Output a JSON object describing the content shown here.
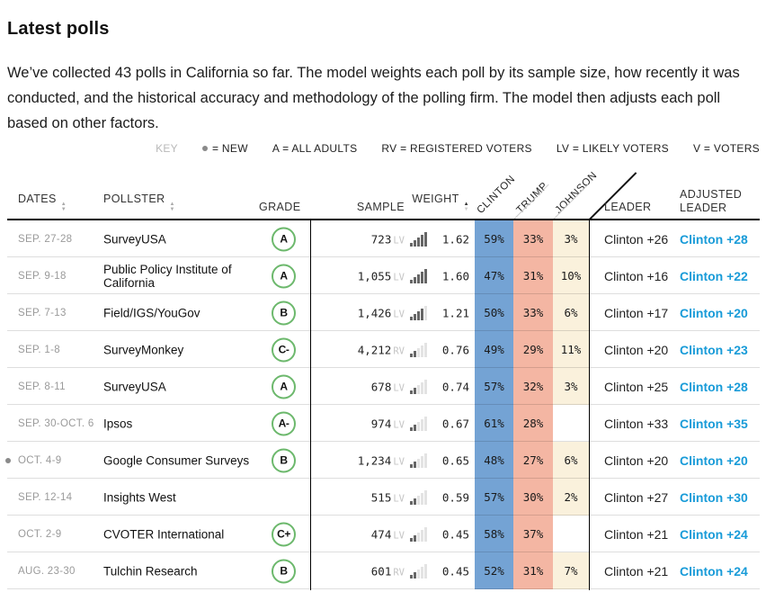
{
  "page": {
    "title": "Latest polls",
    "intro": "We’ve collected 43 polls in California so far. The model weights each poll by its sample size, how recently it was conducted, and the historical accuracy and methodology of the polling firm. The model then adjusts each poll based on other factors."
  },
  "key": {
    "label": "KEY",
    "items": [
      {
        "icon": "dot",
        "text": "= NEW"
      },
      {
        "text": "A = ALL ADULTS"
      },
      {
        "text": "RV = REGISTERED VOTERS"
      },
      {
        "text": "LV = LIKELY VOTERS"
      },
      {
        "text": "V = VOTERS"
      }
    ]
  },
  "columns": {
    "dates": "DATES",
    "pollster": "POLLSTER",
    "grade": "GRADE",
    "sample": "SAMPLE",
    "weight": "WEIGHT",
    "candidates": [
      "CLINTON",
      "TRUMP",
      "JOHNSON"
    ],
    "leader": "LEADER",
    "adjusted_leader_line1": "ADJUSTED",
    "adjusted_leader_line2": "LEADER"
  },
  "colors": {
    "clinton_column": "#74a3d4",
    "trump_column": "#f4b6a3",
    "johnson_column": "#faf1dc",
    "adjusted_blue": "#189bd8",
    "grade_green": "#6cb86c"
  },
  "rows": [
    {
      "is_new": false,
      "dates": "SEP. 27-28",
      "pollster": "SurveyUSA",
      "grade": "A",
      "sample": "723",
      "sample_type": "LV",
      "weight": "1.62",
      "bars": 5,
      "clinton": "59%",
      "trump": "33%",
      "johnson": "3%",
      "leader": "Clinton +26",
      "adjusted": "Clinton +28"
    },
    {
      "is_new": false,
      "dates": "SEP. 9-18",
      "pollster": "Public Policy Institute of California",
      "grade": "A",
      "sample": "1,055",
      "sample_type": "LV",
      "weight": "1.60",
      "bars": 5,
      "clinton": "47%",
      "trump": "31%",
      "johnson": "10%",
      "leader": "Clinton +16",
      "adjusted": "Clinton +22"
    },
    {
      "is_new": false,
      "dates": "SEP. 7-13",
      "pollster": "Field/IGS/YouGov",
      "grade": "B",
      "sample": "1,426",
      "sample_type": "LV",
      "weight": "1.21",
      "bars": 4,
      "clinton": "50%",
      "trump": "33%",
      "johnson": "6%",
      "leader": "Clinton +17",
      "adjusted": "Clinton +20"
    },
    {
      "is_new": false,
      "dates": "SEP. 1-8",
      "pollster": "SurveyMonkey",
      "grade": "C-",
      "sample": "4,212",
      "sample_type": "RV",
      "weight": "0.76",
      "bars": 2,
      "clinton": "49%",
      "trump": "29%",
      "johnson": "11%",
      "leader": "Clinton +20",
      "adjusted": "Clinton +23"
    },
    {
      "is_new": false,
      "dates": "SEP. 8-11",
      "pollster": "SurveyUSA",
      "grade": "A",
      "sample": "678",
      "sample_type": "LV",
      "weight": "0.74",
      "bars": 2,
      "clinton": "57%",
      "trump": "32%",
      "johnson": "3%",
      "leader": "Clinton +25",
      "adjusted": "Clinton +28"
    },
    {
      "is_new": false,
      "dates": "SEP. 30-OCT. 6",
      "pollster": "Ipsos",
      "grade": "A-",
      "sample": "974",
      "sample_type": "LV",
      "weight": "0.67",
      "bars": 2,
      "clinton": "61%",
      "trump": "28%",
      "johnson": "",
      "leader": "Clinton +33",
      "adjusted": "Clinton +35"
    },
    {
      "is_new": true,
      "dates": "OCT. 4-9",
      "pollster": "Google Consumer Surveys",
      "grade": "B",
      "sample": "1,234",
      "sample_type": "LV",
      "weight": "0.65",
      "bars": 2,
      "clinton": "48%",
      "trump": "27%",
      "johnson": "6%",
      "leader": "Clinton +20",
      "adjusted": "Clinton +20"
    },
    {
      "is_new": false,
      "dates": "SEP. 12-14",
      "pollster": "Insights West",
      "grade": "",
      "sample": "515",
      "sample_type": "LV",
      "weight": "0.59",
      "bars": 2,
      "clinton": "57%",
      "trump": "30%",
      "johnson": "2%",
      "leader": "Clinton +27",
      "adjusted": "Clinton +30"
    },
    {
      "is_new": false,
      "dates": "OCT. 2-9",
      "pollster": "CVOTER International",
      "grade": "C+",
      "sample": "474",
      "sample_type": "LV",
      "weight": "0.45",
      "bars": 2,
      "clinton": "58%",
      "trump": "37%",
      "johnson": "",
      "leader": "Clinton +21",
      "adjusted": "Clinton +24"
    },
    {
      "is_new": false,
      "dates": "AUG. 23-30",
      "pollster": "Tulchin Research",
      "grade": "B",
      "sample": "601",
      "sample_type": "RV",
      "weight": "0.45",
      "bars": 2,
      "clinton": "52%",
      "trump": "31%",
      "johnson": "7%",
      "leader": "Clinton +21",
      "adjusted": "Clinton +24"
    }
  ]
}
